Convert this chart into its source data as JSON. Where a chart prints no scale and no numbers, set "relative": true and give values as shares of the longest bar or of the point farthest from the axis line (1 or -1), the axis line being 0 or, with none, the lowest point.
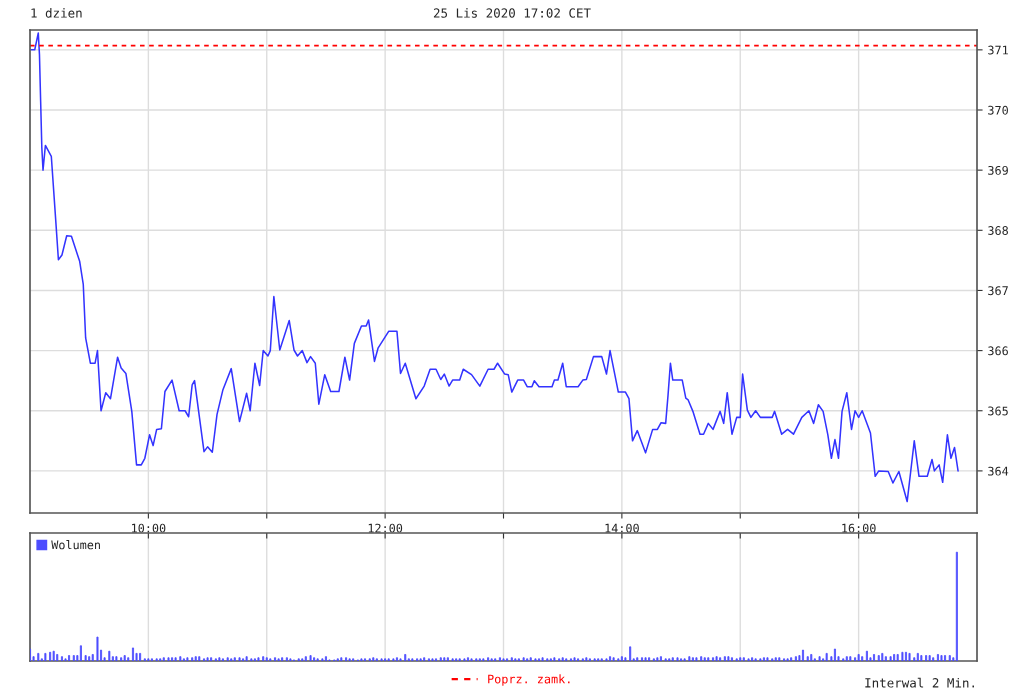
{
  "chart_data": [
    {
      "type": "line",
      "title": "1 dzien",
      "annotations": [
        "25 Lis 2020 17:02 CET",
        "Interwal 2 Min."
      ],
      "xlim": [
        9,
        17
      ],
      "xticks": [
        {
          "value": 10,
          "label": "10:00"
        },
        {
          "value": 11,
          "label": null
        },
        {
          "value": 12,
          "label": "12:00"
        },
        {
          "value": 13,
          "label": null
        },
        {
          "value": 14,
          "label": "14:00"
        },
        {
          "value": 15,
          "label": null
        },
        {
          "value": 16,
          "label": "16:00"
        }
      ],
      "ylim": [
        363.3,
        371.33
      ],
      "yticks": [
        364,
        365,
        366,
        367,
        368,
        369,
        370,
        371
      ],
      "grid": true,
      "legend": "bottom",
      "line_style": "solid",
      "marker": "none",
      "ref_lines": [
        {
          "axis": "y",
          "value": 371.07,
          "label": "Poprz. zamk.",
          "color": "#ff0000",
          "line_style": "dashed"
        }
      ],
      "series": [
        {
          "color": "#3333ff",
          "x": [
            9.01,
            9.04,
            9.07,
            9.08,
            9.09,
            9.1,
            9.11,
            9.13,
            9.18,
            9.22,
            9.24,
            9.27,
            9.31,
            9.35,
            9.42,
            9.45,
            9.47,
            9.51,
            9.55,
            9.57,
            9.6,
            9.64,
            9.68,
            9.74,
            9.77,
            9.81,
            9.86,
            9.9,
            9.94,
            9.97,
            10.01,
            10.04,
            10.07,
            10.11,
            10.14,
            10.2,
            10.26,
            10.31,
            10.34,
            10.37,
            10.39,
            10.47,
            10.5,
            10.54,
            10.58,
            10.63,
            10.7,
            10.77,
            10.83,
            10.86,
            10.9,
            10.94,
            10.97,
            11.01,
            11.03,
            11.06,
            11.11,
            11.19,
            11.23,
            11.26,
            11.3,
            11.34,
            11.37,
            11.41,
            11.44,
            11.49,
            11.54,
            11.61,
            11.66,
            11.7,
            11.74,
            11.8,
            11.84,
            11.86,
            11.91,
            11.94,
            12.03,
            12.1,
            12.13,
            12.17,
            12.26,
            12.33,
            12.38,
            12.43,
            12.47,
            12.5,
            12.54,
            12.57,
            12.63,
            12.66,
            12.73,
            12.8,
            12.87,
            12.92,
            12.95,
            13.01,
            13.04,
            13.07,
            13.12,
            13.17,
            13.2,
            13.24,
            13.26,
            13.3,
            13.41,
            13.43,
            13.46,
            13.5,
            13.53,
            13.63,
            13.67,
            13.7,
            13.76,
            13.83,
            13.87,
            13.9,
            13.97,
            14.03,
            14.06,
            14.09,
            14.13,
            14.2,
            14.26,
            14.3,
            14.33,
            14.37,
            14.39,
            14.41,
            14.43,
            14.51,
            14.54,
            14.56,
            14.6,
            14.66,
            14.69,
            14.73,
            14.77,
            14.83,
            14.86,
            14.89,
            14.93,
            14.97,
            15.0,
            15.02,
            15.06,
            15.09,
            15.13,
            15.17,
            15.27,
            15.29,
            15.35,
            15.4,
            15.45,
            15.52,
            15.58,
            15.62,
            15.66,
            15.7,
            15.74,
            15.77,
            15.8,
            15.83,
            15.86,
            15.9,
            15.94,
            15.97,
            16.0,
            16.03,
            16.1,
            16.14,
            16.17,
            16.25,
            16.29,
            16.34,
            16.41,
            16.44,
            16.47,
            16.51,
            16.58,
            16.62,
            16.64,
            16.68,
            16.71,
            16.75,
            16.78,
            16.81,
            16.84
          ],
          "values": [
            371.0,
            371.0,
            371.28,
            370.92,
            370.14,
            369.37,
            369.0,
            369.41,
            369.23,
            368.09,
            367.51,
            367.59,
            367.91,
            367.9,
            367.48,
            367.1,
            366.21,
            365.79,
            365.79,
            366.0,
            365.0,
            365.3,
            365.2,
            365.89,
            365.71,
            365.62,
            364.99,
            364.1,
            364.1,
            364.21,
            364.6,
            364.42,
            364.69,
            364.7,
            365.32,
            365.51,
            365.0,
            365.0,
            364.9,
            365.43,
            365.5,
            364.32,
            364.4,
            364.31,
            364.94,
            365.35,
            365.7,
            364.82,
            365.29,
            365.0,
            365.79,
            365.42,
            366.0,
            365.91,
            366.0,
            366.9,
            366.01,
            366.5,
            366.01,
            365.91,
            366.0,
            365.8,
            365.9,
            365.79,
            365.11,
            365.6,
            365.32,
            365.32,
            365.89,
            365.51,
            366.12,
            366.41,
            366.41,
            366.51,
            365.82,
            366.04,
            366.32,
            366.32,
            365.62,
            365.79,
            365.2,
            365.41,
            365.69,
            365.69,
            365.52,
            365.61,
            365.41,
            365.51,
            365.51,
            365.69,
            365.6,
            365.41,
            365.69,
            365.69,
            365.79,
            365.61,
            365.6,
            365.31,
            365.51,
            365.51,
            365.4,
            365.4,
            365.5,
            365.4,
            365.4,
            365.51,
            365.51,
            365.79,
            365.4,
            365.4,
            365.51,
            365.52,
            365.9,
            365.9,
            365.61,
            366.0,
            365.31,
            365.31,
            365.2,
            364.5,
            364.67,
            364.3,
            364.69,
            364.69,
            364.8,
            364.79,
            365.26,
            365.79,
            365.51,
            365.51,
            365.21,
            365.18,
            364.99,
            364.61,
            364.61,
            364.79,
            364.69,
            364.99,
            364.79,
            365.3,
            364.61,
            364.89,
            364.89,
            365.61,
            365.01,
            364.89,
            365.0,
            364.89,
            364.89,
            364.99,
            364.61,
            364.69,
            364.61,
            364.89,
            365.0,
            364.79,
            365.1,
            364.99,
            364.6,
            364.21,
            364.52,
            364.21,
            364.99,
            365.3,
            364.69,
            365.0,
            364.89,
            365.0,
            364.63,
            363.91,
            364.0,
            363.99,
            363.8,
            363.99,
            363.49,
            363.99,
            364.5,
            363.91,
            363.91,
            364.19,
            364.0,
            364.1,
            363.81,
            364.6,
            364.21,
            364.39,
            364.0
          ]
        }
      ]
    },
    {
      "type": "bar",
      "relative": true,
      "legend": "top left",
      "grid": "x",
      "tick_labels": false,
      "xlim": [
        9,
        17
      ],
      "xticks": [
        {
          "value": 10,
          "label": null
        },
        {
          "value": 11,
          "label": null
        },
        {
          "value": 12,
          "label": null
        },
        {
          "value": 13,
          "label": null
        },
        {
          "value": 14,
          "label": null
        },
        {
          "value": 15,
          "label": null
        },
        {
          "value": 16,
          "label": null
        }
      ],
      "series": [
        {
          "name": "Wolumen",
          "color": "#4d4dff",
          "x": [
            9.0,
            9.03,
            9.07,
            9.1,
            9.13,
            9.17,
            9.2,
            9.23,
            9.27,
            9.3,
            9.33,
            9.37,
            9.4,
            9.43,
            9.47,
            9.5,
            9.53,
            9.57,
            9.6,
            9.63,
            9.67,
            9.7,
            9.73,
            9.77,
            9.8,
            9.83,
            9.87,
            9.9,
            9.93,
            9.97,
            10.0,
            10.03,
            10.07,
            10.1,
            10.13,
            10.17,
            10.2,
            10.23,
            10.27,
            10.3,
            10.33,
            10.37,
            10.4,
            10.43,
            10.47,
            10.5,
            10.53,
            10.57,
            10.6,
            10.63,
            10.67,
            10.7,
            10.73,
            10.77,
            10.8,
            10.83,
            10.87,
            10.9,
            10.93,
            10.97,
            11.0,
            11.03,
            11.07,
            11.1,
            11.13,
            11.17,
            11.2,
            11.23,
            11.27,
            11.3,
            11.33,
            11.37,
            11.4,
            11.43,
            11.47,
            11.5,
            11.53,
            11.57,
            11.6,
            11.63,
            11.67,
            11.7,
            11.73,
            11.77,
            11.8,
            11.83,
            11.87,
            11.9,
            11.93,
            11.97,
            12.0,
            12.03,
            12.07,
            12.1,
            12.13,
            12.17,
            12.2,
            12.23,
            12.27,
            12.3,
            12.33,
            12.37,
            12.4,
            12.43,
            12.47,
            12.5,
            12.53,
            12.57,
            12.6,
            12.63,
            12.67,
            12.7,
            12.73,
            12.77,
            12.8,
            12.83,
            12.87,
            12.9,
            12.93,
            12.97,
            13.0,
            13.03,
            13.07,
            13.1,
            13.13,
            13.17,
            13.2,
            13.23,
            13.27,
            13.3,
            13.33,
            13.37,
            13.4,
            13.43,
            13.47,
            13.5,
            13.53,
            13.57,
            13.6,
            13.63,
            13.67,
            13.7,
            13.73,
            13.77,
            13.8,
            13.83,
            13.87,
            13.9,
            13.93,
            13.97,
            14.0,
            14.03,
            14.07,
            14.1,
            14.13,
            14.17,
            14.2,
            14.23,
            14.27,
            14.3,
            14.33,
            14.37,
            14.4,
            14.43,
            14.47,
            14.5,
            14.53,
            14.57,
            14.6,
            14.63,
            14.67,
            14.7,
            14.73,
            14.77,
            14.8,
            14.83,
            14.87,
            14.9,
            14.93,
            14.97,
            15.0,
            15.03,
            15.07,
            15.1,
            15.13,
            15.17,
            15.2,
            15.23,
            15.27,
            15.3,
            15.33,
            15.37,
            15.4,
            15.43,
            15.47,
            15.5,
            15.53,
            15.57,
            15.6,
            15.63,
            15.67,
            15.7,
            15.73,
            15.77,
            15.8,
            15.83,
            15.87,
            15.9,
            15.93,
            15.97,
            16.0,
            16.03,
            16.07,
            16.1,
            16.13,
            16.17,
            16.2,
            16.23,
            16.27,
            16.3,
            16.33,
            16.37,
            16.4,
            16.43,
            16.47,
            16.5,
            16.53,
            16.57,
            16.6,
            16.63,
            16.67,
            16.7,
            16.73,
            16.77,
            16.8,
            16.83
          ],
          "values": [
            0.11,
            0.04,
            0.07,
            0.02,
            0.07,
            0.08,
            0.09,
            0.06,
            0.04,
            0.02,
            0.05,
            0.05,
            0.05,
            0.14,
            0.05,
            0.04,
            0.06,
            0.22,
            0.1,
            0.03,
            0.09,
            0.04,
            0.04,
            0.03,
            0.05,
            0.03,
            0.12,
            0.07,
            0.07,
            0.02,
            0.02,
            0.02,
            0.02,
            0.02,
            0.03,
            0.03,
            0.03,
            0.03,
            0.04,
            0.02,
            0.03,
            0.03,
            0.04,
            0.04,
            0.02,
            0.03,
            0.03,
            0.02,
            0.03,
            0.02,
            0.03,
            0.02,
            0.03,
            0.03,
            0.02,
            0.04,
            0.02,
            0.02,
            0.03,
            0.04,
            0.03,
            0.02,
            0.03,
            0.02,
            0.03,
            0.03,
            0.02,
            0.01,
            0.02,
            0.02,
            0.04,
            0.05,
            0.03,
            0.02,
            0.02,
            0.04,
            0.01,
            0.01,
            0.02,
            0.03,
            0.03,
            0.02,
            0.02,
            0.01,
            0.02,
            0.02,
            0.02,
            0.03,
            0.02,
            0.02,
            0.02,
            0.02,
            0.02,
            0.03,
            0.02,
            0.06,
            0.02,
            0.02,
            0.02,
            0.02,
            0.03,
            0.02,
            0.02,
            0.02,
            0.03,
            0.03,
            0.03,
            0.02,
            0.02,
            0.02,
            0.02,
            0.03,
            0.02,
            0.02,
            0.02,
            0.02,
            0.03,
            0.02,
            0.02,
            0.03,
            0.02,
            0.02,
            0.03,
            0.02,
            0.02,
            0.03,
            0.02,
            0.03,
            0.02,
            0.02,
            0.03,
            0.02,
            0.02,
            0.03,
            0.02,
            0.03,
            0.02,
            0.02,
            0.03,
            0.02,
            0.02,
            0.03,
            0.02,
            0.02,
            0.02,
            0.02,
            0.02,
            0.04,
            0.03,
            0.02,
            0.04,
            0.03,
            0.13,
            0.02,
            0.03,
            0.03,
            0.03,
            0.03,
            0.02,
            0.03,
            0.04,
            0.02,
            0.02,
            0.03,
            0.03,
            0.02,
            0.02,
            0.04,
            0.03,
            0.03,
            0.04,
            0.03,
            0.03,
            0.03,
            0.04,
            0.03,
            0.04,
            0.04,
            0.03,
            0.02,
            0.03,
            0.03,
            0.02,
            0.03,
            0.02,
            0.02,
            0.03,
            0.03,
            0.02,
            0.03,
            0.03,
            0.02,
            0.02,
            0.03,
            0.04,
            0.05,
            0.1,
            0.04,
            0.06,
            0.02,
            0.04,
            0.02,
            0.07,
            0.04,
            0.11,
            0.04,
            0.02,
            0.04,
            0.04,
            0.03,
            0.06,
            0.04,
            0.09,
            0.03,
            0.06,
            0.05,
            0.07,
            0.04,
            0.04,
            0.06,
            0.06,
            0.08,
            0.08,
            0.07,
            0.03,
            0.07,
            0.05,
            0.05,
            0.05,
            0.03,
            0.06,
            0.05,
            0.05,
            0.05,
            0.03,
            1.0
          ]
        }
      ]
    }
  ]
}
